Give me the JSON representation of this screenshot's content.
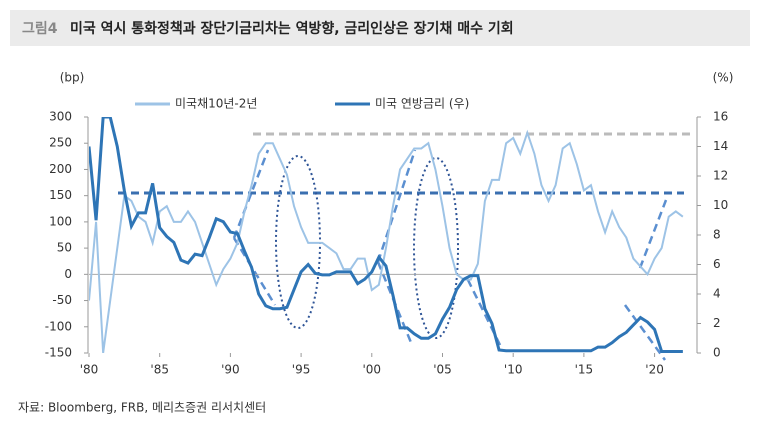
{
  "chart_data": {
    "type": "line",
    "figure_label": "그림4",
    "title": "미국 역시 통화정책과 장단기금리차는 역방향, 금리인상은 장기채 매수 기회",
    "source": "자료: Bloomberg, FRB, 메리츠증권 리서치센터",
    "y_label": "(bp)",
    "y2_label": "(%)",
    "xlim": [
      1980,
      2023
    ],
    "xticks": [
      {
        "value": 1980,
        "label": "'80"
      },
      {
        "value": 1985,
        "label": "'85"
      },
      {
        "value": 1990,
        "label": "'90"
      },
      {
        "value": 1995,
        "label": "'95"
      },
      {
        "value": 2000,
        "label": "'00"
      },
      {
        "value": 2005,
        "label": "'05"
      },
      {
        "value": 2010,
        "label": "'10"
      },
      {
        "value": 2015,
        "label": "'15"
      },
      {
        "value": 2020,
        "label": "'20"
      }
    ],
    "ylim": [
      -150,
      300
    ],
    "yticks": [
      -150,
      -100,
      -50,
      0,
      50,
      100,
      150,
      200,
      250,
      300
    ],
    "y2lim": [
      0,
      16
    ],
    "y2ticks": [
      0,
      2,
      4,
      6,
      8,
      10,
      12,
      14,
      16
    ],
    "x": [
      1980,
      1980.5,
      1981,
      1981.5,
      1982,
      1982.5,
      1983,
      1983.5,
      1984,
      1984.5,
      1985,
      1985.5,
      1986,
      1986.5,
      1987,
      1987.5,
      1988,
      1988.5,
      1989,
      1989.5,
      1990,
      1990.5,
      1991,
      1991.5,
      1992,
      1992.5,
      1993,
      1993.5,
      1994,
      1994.5,
      1995,
      1995.5,
      1996,
      1996.5,
      1997,
      1997.5,
      1998,
      1998.5,
      1999,
      1999.5,
      2000,
      2000.5,
      2001,
      2001.5,
      2002,
      2002.5,
      2003,
      2003.5,
      2004,
      2004.5,
      2005,
      2005.5,
      2006,
      2006.5,
      2007,
      2007.5,
      2008,
      2008.5,
      2009,
      2009.5,
      2010,
      2010.5,
      2011,
      2011.5,
      2012,
      2012.5,
      2013,
      2013.5,
      2014,
      2014.5,
      2015,
      2015.5,
      2016,
      2016.5,
      2017,
      2017.5,
      2018,
      2018.5,
      2019,
      2019.5,
      2020,
      2020.5,
      2021,
      2021.5,
      2022
    ],
    "series": [
      {
        "name": "미국채10년-2년",
        "color": "#9dc3e6",
        "axis": "y",
        "values": [
          -50,
          100,
          -150,
          -50,
          50,
          150,
          140,
          110,
          100,
          60,
          120,
          130,
          100,
          100,
          120,
          100,
          60,
          20,
          -20,
          10,
          30,
          60,
          120,
          170,
          230,
          250,
          250,
          220,
          190,
          130,
          90,
          60,
          60,
          60,
          50,
          40,
          10,
          10,
          30,
          30,
          -30,
          -20,
          50,
          130,
          200,
          220,
          240,
          240,
          250,
          200,
          130,
          50,
          0,
          -10,
          -10,
          20,
          140,
          180,
          180,
          250,
          260,
          230,
          270,
          230,
          170,
          140,
          170,
          240,
          250,
          210,
          160,
          170,
          120,
          80,
          120,
          90,
          70,
          30,
          15,
          0,
          30,
          50,
          110,
          120,
          110
        ]
      },
      {
        "name": "미국 연방금리 (우)",
        "color": "#2e75b6",
        "axis": "y2",
        "values": [
          14,
          9,
          16,
          16,
          14,
          11,
          8.6,
          9.5,
          9.5,
          11.5,
          8.5,
          7.9,
          7.5,
          6.3,
          6.1,
          6.7,
          6.6,
          7.8,
          9.1,
          8.9,
          8.2,
          8.1,
          6.9,
          5.8,
          4,
          3.2,
          3,
          3,
          3.1,
          4.3,
          5.5,
          6,
          5.4,
          5.3,
          5.3,
          5.5,
          5.5,
          5.5,
          4.7,
          5,
          5.5,
          6.5,
          5.9,
          3.9,
          1.7,
          1.7,
          1.3,
          1,
          1,
          1.3,
          2.3,
          3.1,
          4.3,
          5,
          5.25,
          5.25,
          3,
          2,
          0.2,
          0.15,
          0.15,
          0.15,
          0.15,
          0.15,
          0.15,
          0.15,
          0.15,
          0.15,
          0.15,
          0.15,
          0.15,
          0.15,
          0.4,
          0.4,
          0.7,
          1.1,
          1.4,
          1.9,
          2.4,
          2.1,
          1.6,
          0.1,
          0.1,
          0.1,
          0.1
        ]
      }
    ]
  }
}
